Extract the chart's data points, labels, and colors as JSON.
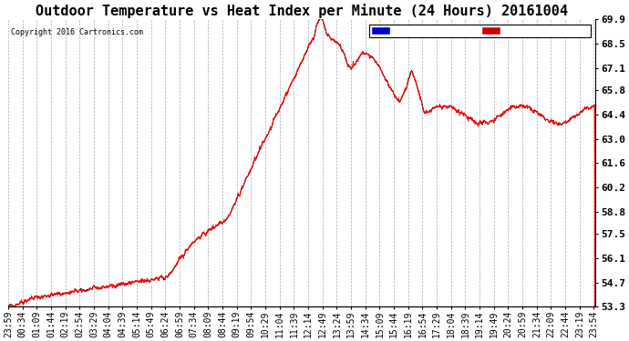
{
  "title": "Outdoor Temperature vs Heat Index per Minute (24 Hours) 20161004",
  "copyright": "Copyright 2016 Cartronics.com",
  "ylabel_right_ticks": [
    53.3,
    54.7,
    56.1,
    57.5,
    58.8,
    60.2,
    61.6,
    63.0,
    64.4,
    65.8,
    67.1,
    68.5,
    69.9
  ],
  "ylim": [
    53.3,
    69.9
  ],
  "background_color": "#ffffff",
  "plot_background": "#ffffff",
  "grid_color": "#aaaaaa",
  "temp_color": "#000000",
  "heat_color": "#ff0000",
  "legend_heat_bg": "#0000cc",
  "legend_temp_bg": "#cc0000",
  "title_fontsize": 11,
  "tick_fontsize": 7,
  "legend_fontsize": 7.5
}
